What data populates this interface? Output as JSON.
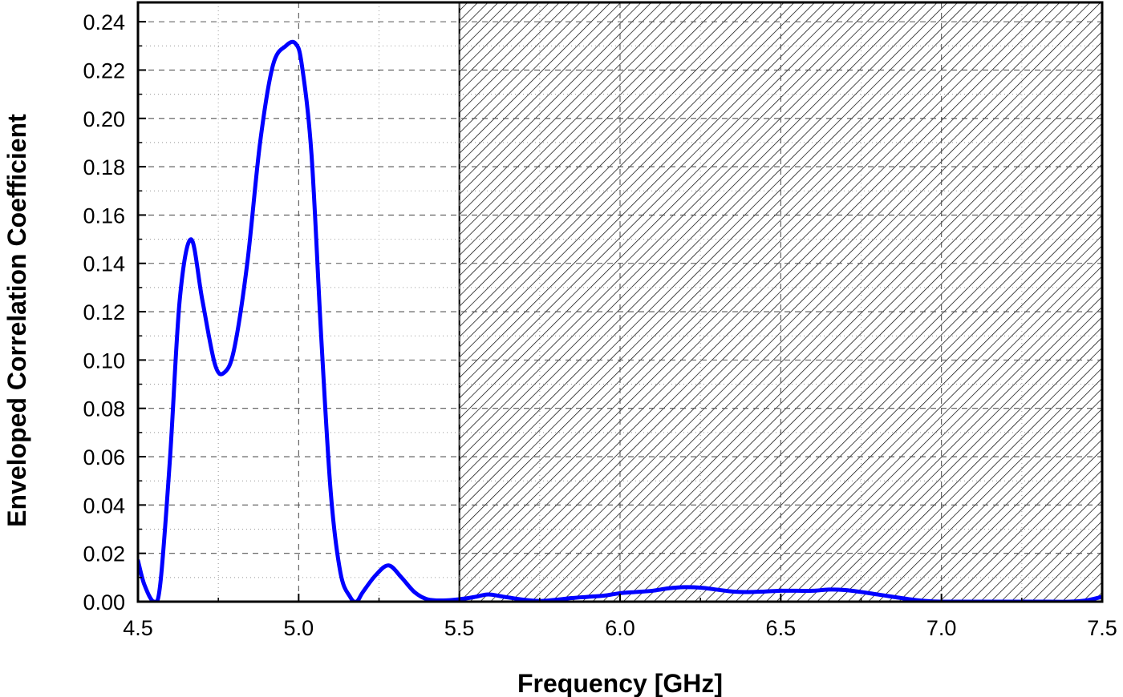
{
  "chart_data": {
    "type": "line",
    "title": "",
    "xlabel": "Frequency [GHz]",
    "ylabel": "Enveloped Correlation Coefficient",
    "xlim": [
      4.5,
      7.5
    ],
    "ylim": [
      0.0,
      0.248
    ],
    "x_ticks": [
      "4.5",
      "5.0",
      "5.5",
      "6.0",
      "6.5",
      "7.0",
      "7.5"
    ],
    "y_ticks": [
      "0.00",
      "0.02",
      "0.04",
      "0.06",
      "0.08",
      "0.10",
      "0.12",
      "0.14",
      "0.16",
      "0.18",
      "0.20",
      "0.22",
      "0.24"
    ],
    "grid": true,
    "legend": "none",
    "shaded_region": {
      "x_start": 5.5,
      "x_end": 7.5,
      "pattern": "diagonal-hatch"
    },
    "series": [
      {
        "color": "#0000ff",
        "x": [
          4.5,
          4.52,
          4.55,
          4.57,
          4.6,
          4.63,
          4.665,
          4.7,
          4.74,
          4.77,
          4.8,
          4.84,
          4.88,
          4.92,
          4.96,
          4.99,
          5.01,
          5.04,
          5.07,
          5.1,
          5.13,
          5.16,
          5.18,
          5.2,
          5.24,
          5.28,
          5.32,
          5.36,
          5.4,
          5.45,
          5.5,
          5.55,
          5.59,
          5.64,
          5.7,
          5.75,
          5.8,
          5.85,
          5.9,
          5.95,
          6.0,
          6.05,
          6.1,
          6.15,
          6.2,
          6.25,
          6.3,
          6.35,
          6.4,
          6.45,
          6.5,
          6.55,
          6.6,
          6.65,
          6.7,
          6.75,
          6.8,
          6.85,
          6.9,
          6.95,
          7.0,
          7.1,
          7.2,
          7.3,
          7.4,
          7.45,
          7.5
        ],
        "y": [
          0.017,
          0.007,
          0.0,
          0.008,
          0.06,
          0.125,
          0.15,
          0.125,
          0.098,
          0.095,
          0.105,
          0.14,
          0.19,
          0.222,
          0.23,
          0.231,
          0.222,
          0.185,
          0.11,
          0.045,
          0.012,
          0.002,
          0.0,
          0.004,
          0.011,
          0.015,
          0.01,
          0.004,
          0.001,
          0.0005,
          0.001,
          0.002,
          0.003,
          0.002,
          0.0008,
          0.0003,
          0.0008,
          0.0015,
          0.002,
          0.0025,
          0.0035,
          0.004,
          0.0045,
          0.0055,
          0.006,
          0.0058,
          0.005,
          0.0042,
          0.004,
          0.0042,
          0.0045,
          0.0045,
          0.0045,
          0.005,
          0.0048,
          0.004,
          0.003,
          0.002,
          0.001,
          0.0003,
          0.0,
          0.0,
          0.0,
          0.0,
          0.0,
          0.0005,
          0.002
        ]
      }
    ]
  }
}
